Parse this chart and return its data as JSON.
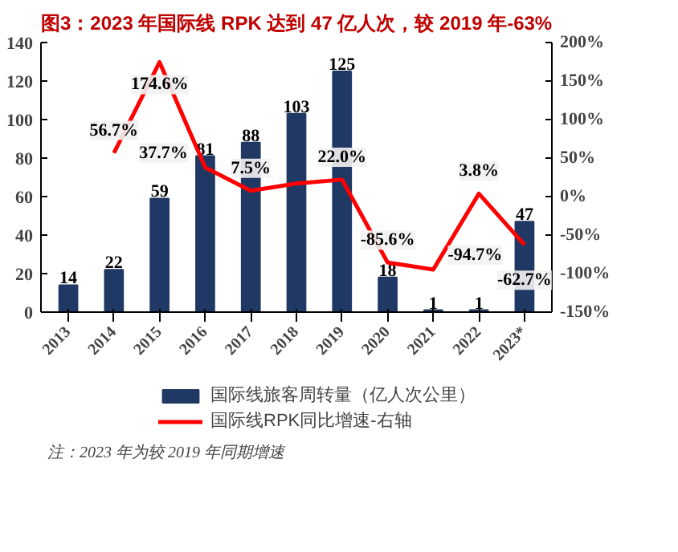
{
  "chart_data": {
    "type": "bar",
    "title": "图3：2023 年国际线 RPK 达到 47 亿人次，较 2019 年-63%",
    "categories": [
      "2013",
      "2014",
      "2015",
      "2016",
      "2017",
      "2018",
      "2019",
      "2020",
      "2021",
      "2022",
      "2023*"
    ],
    "series": [
      {
        "name": "国际线旅客周转量（亿人次公里）",
        "color": "#1f3864",
        "values": [
          14,
          22,
          59,
          81,
          88,
          103,
          125,
          18,
          1,
          1,
          47
        ],
        "data_labels": true
      },
      {
        "name": "国际线RPK同比增速-右轴",
        "type": "line",
        "axis": "y2",
        "color": "#ff0000",
        "values": [
          null,
          56.7,
          174.6,
          37.7,
          7.5,
          17,
          22.0,
          -85.6,
          -94.7,
          3.8,
          -62.7
        ],
        "value_labels": [
          null,
          "56.7%",
          "174.6%",
          "37.7%",
          "7.5%",
          null,
          "22.0%",
          "-85.6%",
          "-94.7%",
          "3.8%",
          "-62.7%"
        ]
      }
    ],
    "ylim": [
      0,
      140
    ],
    "yticks": [
      0,
      20,
      40,
      60,
      80,
      100,
      120,
      140
    ],
    "y2lim": [
      -150,
      200
    ],
    "y2ticks": [
      {
        "value": -150,
        "label": "-150%"
      },
      {
        "value": -100,
        "label": "-100%"
      },
      {
        "value": -50,
        "label": "-50%"
      },
      {
        "value": 0,
        "label": "0%"
      },
      {
        "value": 50,
        "label": "50%"
      },
      {
        "value": 100,
        "label": "100%"
      },
      {
        "value": 150,
        "label": "150%"
      },
      {
        "value": 200,
        "label": "200%"
      }
    ],
    "grid": false,
    "legend": "bottom",
    "line_style": "solid",
    "marker": "none",
    "annotations": [
      "注：2023 年为较 2019 年同期增速"
    ]
  }
}
